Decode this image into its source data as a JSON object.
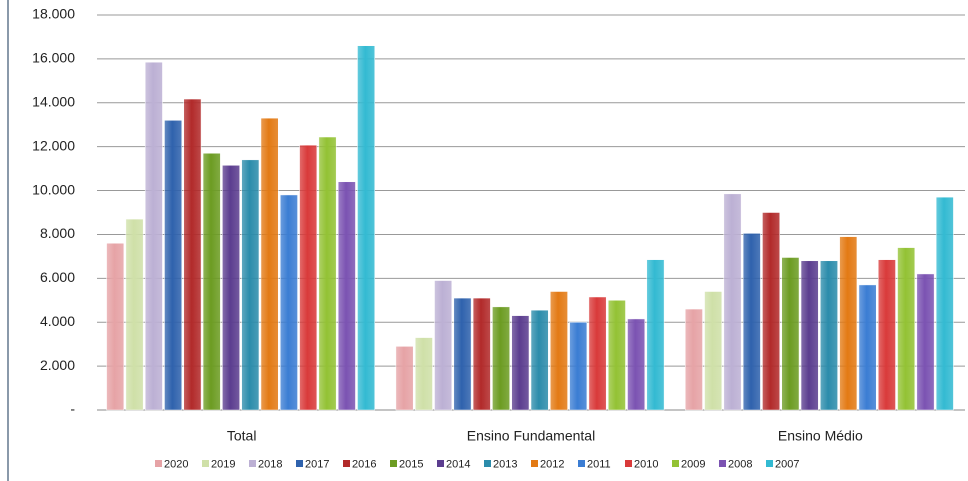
{
  "chart_data": {
    "type": "bar",
    "categories": [
      "Total",
      "Ensino Fundamental",
      "Ensino Médio"
    ],
    "series": [
      {
        "name": "2020",
        "color": "#e6a3a6",
        "values": [
          7600,
          2900,
          4600
        ]
      },
      {
        "name": "2019",
        "color": "#cfe0a8",
        "values": [
          8700,
          3300,
          5400
        ]
      },
      {
        "name": "2018",
        "color": "#bcb0d4",
        "values": [
          15850,
          5900,
          9850
        ]
      },
      {
        "name": "2017",
        "color": "#2f62ad",
        "values": [
          13200,
          5100,
          8050
        ]
      },
      {
        "name": "2016",
        "color": "#b22a2a",
        "values": [
          14170,
          5100,
          9000
        ]
      },
      {
        "name": "2015",
        "color": "#6c9c22",
        "values": [
          11700,
          4700,
          6950
        ]
      },
      {
        "name": "2014",
        "color": "#5b3d8f",
        "values": [
          11150,
          4300,
          6800
        ]
      },
      {
        "name": "2013",
        "color": "#2b8cab",
        "values": [
          11400,
          4550,
          6800
        ]
      },
      {
        "name": "2012",
        "color": "#e37a14",
        "values": [
          13300,
          5400,
          7900
        ]
      },
      {
        "name": "2011",
        "color": "#3b7dd3",
        "values": [
          9800,
          4000,
          5700
        ]
      },
      {
        "name": "2010",
        "color": "#d93a3a",
        "values": [
          12070,
          5150,
          6850
        ]
      },
      {
        "name": "2009",
        "color": "#93c234",
        "values": [
          12440,
          5000,
          7400
        ]
      },
      {
        "name": "2008",
        "color": "#7b53b2",
        "values": [
          10400,
          4150,
          6200
        ]
      },
      {
        "name": "2007",
        "color": "#33bad2",
        "values": [
          16600,
          6850,
          9700
        ]
      }
    ],
    "ylim": [
      0,
      18000
    ],
    "yticks": [
      {
        "value": 0,
        "label": "-"
      },
      {
        "value": 2000,
        "label": "2.000"
      },
      {
        "value": 4000,
        "label": "4.000"
      },
      {
        "value": 6000,
        "label": "6.000"
      },
      {
        "value": 8000,
        "label": "8.000"
      },
      {
        "value": 10000,
        "label": "10.000"
      },
      {
        "value": 12000,
        "label": "12.000"
      },
      {
        "value": 14000,
        "label": "14.000"
      },
      {
        "value": 16000,
        "label": "16.000"
      },
      {
        "value": 18000,
        "label": "18.000"
      }
    ],
    "grid": true,
    "legend": "bottom"
  }
}
